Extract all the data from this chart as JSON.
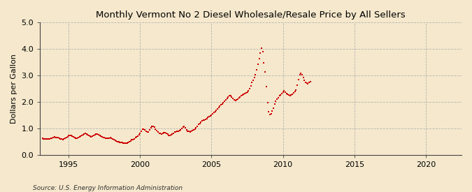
{
  "title": "Monthly Vermont No 2 Diesel Wholesale/Resale Price by All Sellers",
  "ylabel": "Dollars per Gallon",
  "source": "Source: U.S. Energy Information Administration",
  "bg_color": "#f5e8cc",
  "marker_color": "#cc0000",
  "xlim": [
    1993.0,
    2022.5
  ],
  "ylim": [
    0.0,
    5.0
  ],
  "yticks": [
    0.0,
    1.0,
    2.0,
    3.0,
    4.0,
    5.0
  ],
  "xticks": [
    1995,
    2000,
    2005,
    2010,
    2015,
    2020
  ],
  "data": [
    [
      1993.17,
      0.62
    ],
    [
      1993.25,
      0.61
    ],
    [
      1993.33,
      0.6
    ],
    [
      1993.42,
      0.6
    ],
    [
      1993.5,
      0.59
    ],
    [
      1993.58,
      0.59
    ],
    [
      1993.67,
      0.6
    ],
    [
      1993.75,
      0.62
    ],
    [
      1993.83,
      0.63
    ],
    [
      1993.92,
      0.65
    ],
    [
      1994.0,
      0.67
    ],
    [
      1994.08,
      0.66
    ],
    [
      1994.17,
      0.65
    ],
    [
      1994.25,
      0.64
    ],
    [
      1994.33,
      0.63
    ],
    [
      1994.42,
      0.61
    ],
    [
      1994.5,
      0.6
    ],
    [
      1994.58,
      0.58
    ],
    [
      1994.67,
      0.6
    ],
    [
      1994.75,
      0.63
    ],
    [
      1994.83,
      0.66
    ],
    [
      1994.92,
      0.69
    ],
    [
      1995.0,
      0.72
    ],
    [
      1995.08,
      0.73
    ],
    [
      1995.17,
      0.72
    ],
    [
      1995.25,
      0.7
    ],
    [
      1995.33,
      0.68
    ],
    [
      1995.42,
      0.65
    ],
    [
      1995.5,
      0.63
    ],
    [
      1995.58,
      0.63
    ],
    [
      1995.67,
      0.65
    ],
    [
      1995.75,
      0.67
    ],
    [
      1995.83,
      0.7
    ],
    [
      1995.92,
      0.73
    ],
    [
      1996.0,
      0.75
    ],
    [
      1996.08,
      0.78
    ],
    [
      1996.17,
      0.8
    ],
    [
      1996.25,
      0.78
    ],
    [
      1996.33,
      0.76
    ],
    [
      1996.42,
      0.73
    ],
    [
      1996.5,
      0.7
    ],
    [
      1996.58,
      0.69
    ],
    [
      1996.67,
      0.7
    ],
    [
      1996.75,
      0.73
    ],
    [
      1996.83,
      0.76
    ],
    [
      1996.92,
      0.78
    ],
    [
      1997.0,
      0.77
    ],
    [
      1997.08,
      0.75
    ],
    [
      1997.17,
      0.73
    ],
    [
      1997.25,
      0.7
    ],
    [
      1997.33,
      0.68
    ],
    [
      1997.42,
      0.66
    ],
    [
      1997.5,
      0.64
    ],
    [
      1997.58,
      0.63
    ],
    [
      1997.67,
      0.62
    ],
    [
      1997.75,
      0.62
    ],
    [
      1997.83,
      0.63
    ],
    [
      1997.92,
      0.64
    ],
    [
      1998.0,
      0.62
    ],
    [
      1998.08,
      0.6
    ],
    [
      1998.17,
      0.57
    ],
    [
      1998.25,
      0.54
    ],
    [
      1998.33,
      0.52
    ],
    [
      1998.42,
      0.5
    ],
    [
      1998.5,
      0.49
    ],
    [
      1998.58,
      0.48
    ],
    [
      1998.67,
      0.47
    ],
    [
      1998.75,
      0.46
    ],
    [
      1998.83,
      0.45
    ],
    [
      1998.92,
      0.44
    ],
    [
      1999.0,
      0.43
    ],
    [
      1999.08,
      0.44
    ],
    [
      1999.17,
      0.47
    ],
    [
      1999.25,
      0.5
    ],
    [
      1999.33,
      0.53
    ],
    [
      1999.42,
      0.56
    ],
    [
      1999.5,
      0.58
    ],
    [
      1999.58,
      0.61
    ],
    [
      1999.67,
      0.64
    ],
    [
      1999.75,
      0.67
    ],
    [
      1999.83,
      0.71
    ],
    [
      1999.92,
      0.76
    ],
    [
      2000.0,
      0.82
    ],
    [
      2000.08,
      0.9
    ],
    [
      2000.17,
      0.96
    ],
    [
      2000.25,
      0.98
    ],
    [
      2000.33,
      0.94
    ],
    [
      2000.42,
      0.88
    ],
    [
      2000.5,
      0.85
    ],
    [
      2000.58,
      0.87
    ],
    [
      2000.67,
      0.94
    ],
    [
      2000.75,
      1.01
    ],
    [
      2000.83,
      1.06
    ],
    [
      2000.92,
      1.08
    ],
    [
      2001.0,
      1.05
    ],
    [
      2001.08,
      0.97
    ],
    [
      2001.17,
      0.91
    ],
    [
      2001.25,
      0.86
    ],
    [
      2001.33,
      0.82
    ],
    [
      2001.42,
      0.8
    ],
    [
      2001.5,
      0.79
    ],
    [
      2001.58,
      0.81
    ],
    [
      2001.67,
      0.83
    ],
    [
      2001.75,
      0.84
    ],
    [
      2001.83,
      0.82
    ],
    [
      2001.92,
      0.77
    ],
    [
      2002.0,
      0.72
    ],
    [
      2002.08,
      0.73
    ],
    [
      2002.17,
      0.75
    ],
    [
      2002.25,
      0.78
    ],
    [
      2002.33,
      0.82
    ],
    [
      2002.42,
      0.85
    ],
    [
      2002.5,
      0.87
    ],
    [
      2002.58,
      0.88
    ],
    [
      2002.67,
      0.89
    ],
    [
      2002.75,
      0.91
    ],
    [
      2002.83,
      0.94
    ],
    [
      2002.92,
      0.99
    ],
    [
      2003.0,
      1.05
    ],
    [
      2003.08,
      1.07
    ],
    [
      2003.17,
      1.01
    ],
    [
      2003.25,
      0.94
    ],
    [
      2003.33,
      0.9
    ],
    [
      2003.42,
      0.88
    ],
    [
      2003.5,
      0.87
    ],
    [
      2003.58,
      0.89
    ],
    [
      2003.67,
      0.92
    ],
    [
      2003.75,
      0.95
    ],
    [
      2003.83,
      0.98
    ],
    [
      2003.92,
      1.01
    ],
    [
      2004.0,
      1.07
    ],
    [
      2004.08,
      1.14
    ],
    [
      2004.17,
      1.19
    ],
    [
      2004.25,
      1.24
    ],
    [
      2004.33,
      1.28
    ],
    [
      2004.42,
      1.3
    ],
    [
      2004.5,
      1.31
    ],
    [
      2004.58,
      1.34
    ],
    [
      2004.67,
      1.37
    ],
    [
      2004.75,
      1.41
    ],
    [
      2004.83,
      1.44
    ],
    [
      2004.92,
      1.47
    ],
    [
      2005.0,
      1.5
    ],
    [
      2005.08,
      1.54
    ],
    [
      2005.17,
      1.59
    ],
    [
      2005.25,
      1.63
    ],
    [
      2005.33,
      1.68
    ],
    [
      2005.42,
      1.73
    ],
    [
      2005.5,
      1.78
    ],
    [
      2005.58,
      1.83
    ],
    [
      2005.67,
      1.88
    ],
    [
      2005.75,
      1.92
    ],
    [
      2005.83,
      1.97
    ],
    [
      2005.92,
      2.03
    ],
    [
      2006.0,
      2.08
    ],
    [
      2006.08,
      2.13
    ],
    [
      2006.17,
      2.18
    ],
    [
      2006.25,
      2.22
    ],
    [
      2006.33,
      2.23
    ],
    [
      2006.42,
      2.19
    ],
    [
      2006.5,
      2.13
    ],
    [
      2006.58,
      2.08
    ],
    [
      2006.67,
      2.06
    ],
    [
      2006.75,
      2.08
    ],
    [
      2006.83,
      2.1
    ],
    [
      2006.92,
      2.14
    ],
    [
      2007.0,
      2.18
    ],
    [
      2007.08,
      2.23
    ],
    [
      2007.17,
      2.27
    ],
    [
      2007.25,
      2.29
    ],
    [
      2007.33,
      2.31
    ],
    [
      2007.42,
      2.34
    ],
    [
      2007.5,
      2.37
    ],
    [
      2007.58,
      2.41
    ],
    [
      2007.67,
      2.5
    ],
    [
      2007.75,
      2.6
    ],
    [
      2007.83,
      2.72
    ],
    [
      2007.92,
      2.82
    ],
    [
      2008.0,
      2.92
    ],
    [
      2008.08,
      3.02
    ],
    [
      2008.17,
      3.22
    ],
    [
      2008.25,
      3.43
    ],
    [
      2008.33,
      3.62
    ],
    [
      2008.42,
      3.83
    ],
    [
      2008.5,
      4.02
    ],
    [
      2008.58,
      3.88
    ],
    [
      2008.67,
      3.48
    ],
    [
      2008.75,
      3.14
    ],
    [
      2008.83,
      2.58
    ],
    [
      2008.92,
      1.98
    ],
    [
      2009.0,
      1.63
    ],
    [
      2009.08,
      1.53
    ],
    [
      2009.17,
      1.54
    ],
    [
      2009.25,
      1.65
    ],
    [
      2009.33,
      1.76
    ],
    [
      2009.42,
      1.92
    ],
    [
      2009.5,
      2.01
    ],
    [
      2009.58,
      2.11
    ],
    [
      2009.67,
      2.16
    ],
    [
      2009.75,
      2.22
    ],
    [
      2009.83,
      2.26
    ],
    [
      2009.92,
      2.3
    ],
    [
      2010.0,
      2.36
    ],
    [
      2010.08,
      2.41
    ],
    [
      2010.17,
      2.36
    ],
    [
      2010.25,
      2.32
    ],
    [
      2010.33,
      2.28
    ],
    [
      2010.42,
      2.25
    ],
    [
      2010.5,
      2.23
    ],
    [
      2010.58,
      2.26
    ],
    [
      2010.67,
      2.29
    ],
    [
      2010.75,
      2.33
    ],
    [
      2010.83,
      2.38
    ],
    [
      2010.92,
      2.43
    ],
    [
      2011.0,
      2.62
    ],
    [
      2011.08,
      2.83
    ],
    [
      2011.17,
      3.03
    ],
    [
      2011.25,
      3.07
    ],
    [
      2011.33,
      3.02
    ],
    [
      2011.42,
      2.91
    ],
    [
      2011.5,
      2.8
    ],
    [
      2011.58,
      2.74
    ],
    [
      2011.67,
      2.71
    ],
    [
      2011.75,
      2.69
    ],
    [
      2011.83,
      2.72
    ],
    [
      2011.92,
      2.76
    ]
  ]
}
